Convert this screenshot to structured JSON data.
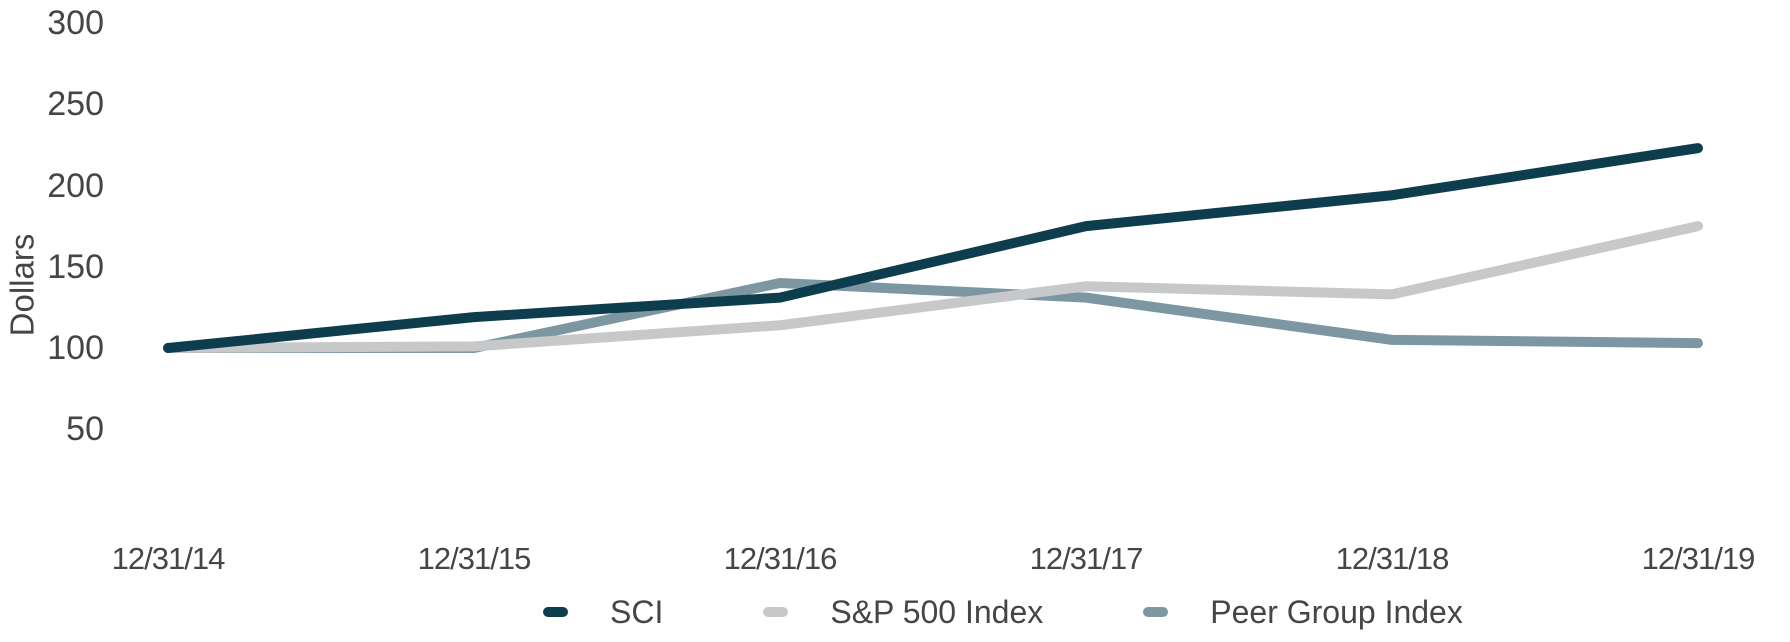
{
  "chart_data": {
    "type": "line",
    "ylabel": "Dollars",
    "xlabel": "",
    "categories": [
      "12/31/14",
      "12/31/15",
      "12/31/16",
      "12/31/17",
      "12/31/18",
      "12/31/19"
    ],
    "y_ticks": [
      300,
      250,
      200,
      150,
      100,
      50
    ],
    "ylim": [
      40,
      310
    ],
    "grid": false,
    "legend_position": "bottom",
    "series": [
      {
        "name": "SCI",
        "color": "#0e3e4e",
        "values": [
          100,
          119,
          131,
          175,
          194,
          223
        ]
      },
      {
        "name": "S&P 500 Index",
        "color": "#c6c8ca",
        "values": [
          100,
          101,
          114,
          138,
          133,
          175
        ]
      },
      {
        "name": "Peer Group Index",
        "color": "#7d97a2",
        "values": [
          100,
          100,
          140,
          131,
          105,
          103
        ]
      }
    ]
  }
}
